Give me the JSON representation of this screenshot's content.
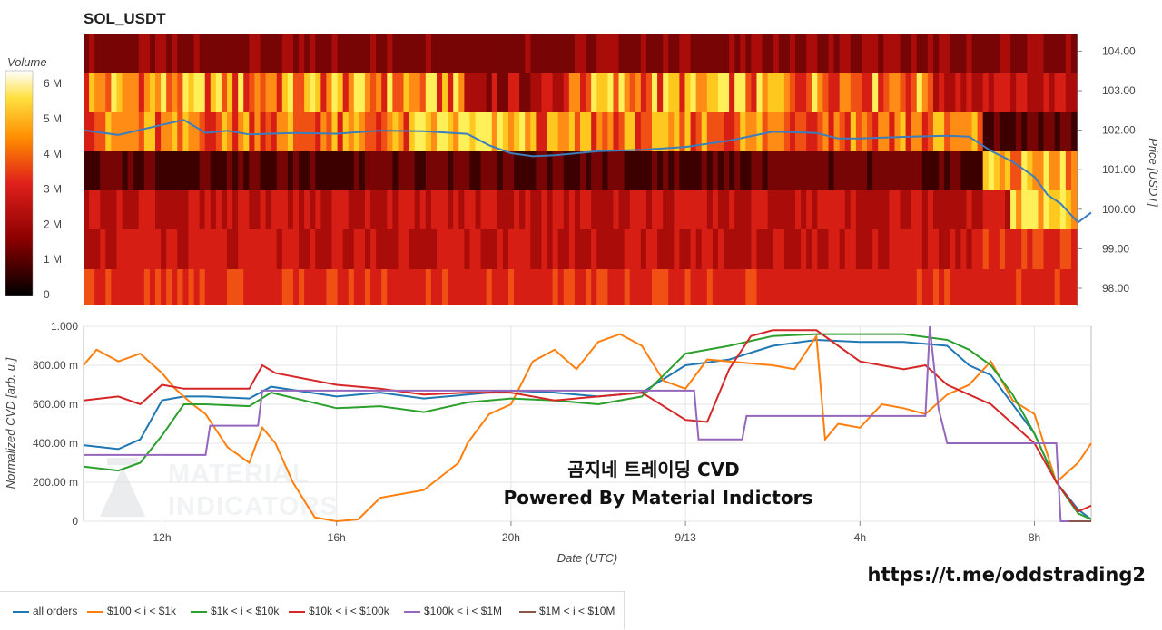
{
  "title": "SOL_USDT",
  "link_text": "https://t.me/oddstrading2",
  "overlay_line1": "곰지네 트레이딩 CVD",
  "overlay_line2": "Powered By Material Indictors",
  "watermark_line1": "MATERIAL",
  "watermark_line2": "INDICATORS",
  "colorbar": {
    "title": "Volume",
    "ticks": [
      "0",
      "1 M",
      "2 M",
      "3 M",
      "4 M",
      "5 M",
      "6 M"
    ]
  },
  "colors": {
    "all_orders": "#1f77b4",
    "b100_1k": "#ff7f0e",
    "b1k_10k": "#2ca02c",
    "b10k_100k": "#d62728",
    "b100k_1M": "#9467bd",
    "b1M_10M": "#8c564b",
    "price_line": "#3b7dbd"
  },
  "heatmap": {
    "ylabel": "Price [USDT]",
    "yticks": [
      "98.00",
      "99.00",
      "100.00",
      "101.00",
      "102.00",
      "103.00",
      "104.00"
    ]
  },
  "cvd": {
    "ylabel": "Normalized CVD [arb. u.]",
    "xlabel": "Date (UTC)",
    "yticks": [
      "0",
      "200.00 m",
      "400.00 m",
      "600.00 m",
      "800.00 m",
      "1.000"
    ],
    "xticks": [
      "12h",
      "16h",
      "20h",
      "9/13",
      "4h",
      "8h"
    ]
  },
  "legend": [
    {
      "label": "all orders",
      "color": "#1f77b4"
    },
    {
      "label": "$100 < i < $1k",
      "color": "#ff7f0e"
    },
    {
      "label": "$1k < i < $10k",
      "color": "#2ca02c"
    },
    {
      "label": "$10k < i < $100k",
      "color": "#d62728"
    },
    {
      "label": "$100k < i < $1M",
      "color": "#9467bd"
    },
    {
      "label": "$1M < i < $10M",
      "color": "#8c564b"
    }
  ],
  "chart_data": [
    {
      "type": "heatmap",
      "title": "SOL_USDT",
      "ylabel": "Price [USDT]",
      "y_levels": [
        104.0,
        103.0,
        102.0,
        101.0,
        100.0,
        99.5,
        98.5,
        98.0
      ],
      "x_hours": [
        10.2,
        33.3
      ],
      "price_series": {
        "x": [
          10.2,
          11,
          12,
          12.5,
          13,
          13.5,
          14,
          15,
          16,
          17,
          18,
          19,
          19.5,
          20,
          20.5,
          21,
          22,
          23,
          24,
          25,
          26,
          27,
          27.5,
          28,
          29,
          30,
          30.5,
          31,
          31.5,
          32,
          32.3,
          32.6,
          33,
          33.3
        ],
        "y": [
          102.0,
          101.9,
          102.1,
          102.3,
          101.9,
          102.0,
          101.9,
          101.9,
          101.95,
          101.95,
          102.0,
          101.9,
          101.6,
          101.45,
          101.3,
          101.4,
          101.45,
          101.5,
          101.6,
          101.7,
          102.0,
          101.9,
          101.8,
          101.8,
          101.8,
          101.9,
          101.8,
          101.5,
          101.2,
          100.8,
          100.4,
          100.1,
          99.7,
          99.9
        ]
      }
    },
    {
      "type": "line",
      "xlabel": "Date (UTC)",
      "ylabel": "Normalized CVD [arb. u.]",
      "ylim": [
        0,
        1
      ],
      "series": [
        {
          "name": "all orders",
          "x": [
            10.2,
            11,
            11.5,
            12,
            12.5,
            13,
            14,
            14.5,
            16,
            17,
            18,
            19,
            20,
            21,
            22,
            23,
            24,
            25,
            26,
            27,
            28,
            29,
            30,
            30.5,
            31,
            31.5,
            32,
            32.5,
            33,
            33.3
          ],
          "y": [
            0.39,
            0.37,
            0.42,
            0.62,
            0.64,
            0.64,
            0.63,
            0.69,
            0.64,
            0.66,
            0.63,
            0.65,
            0.67,
            0.66,
            0.64,
            0.66,
            0.8,
            0.83,
            0.9,
            0.93,
            0.92,
            0.92,
            0.9,
            0.8,
            0.75,
            0.6,
            0.45,
            0.2,
            0.06,
            0.01
          ]
        },
        {
          "name": "$100 < i < $1k",
          "x": [
            10.2,
            10.5,
            11,
            11.5,
            12,
            12.3,
            12.7,
            13,
            13.5,
            14,
            14.3,
            14.6,
            15,
            15.5,
            16,
            16.5,
            17,
            18,
            18.8,
            19,
            19.5,
            20,
            20.5,
            21,
            21.5,
            22,
            22.5,
            23,
            23.5,
            24,
            24.5,
            25,
            26,
            26.5,
            27,
            27.2,
            27.5,
            28,
            28.5,
            29,
            29.5,
            30,
            30.5,
            31,
            31.5,
            32,
            32.5,
            33,
            33.3
          ],
          "y": [
            0.8,
            0.88,
            0.82,
            0.86,
            0.76,
            0.68,
            0.6,
            0.55,
            0.38,
            0.3,
            0.48,
            0.4,
            0.2,
            0.02,
            0.0,
            0.01,
            0.12,
            0.16,
            0.3,
            0.4,
            0.55,
            0.6,
            0.82,
            0.88,
            0.78,
            0.92,
            0.96,
            0.9,
            0.72,
            0.68,
            0.83,
            0.82,
            0.8,
            0.78,
            0.95,
            0.42,
            0.5,
            0.48,
            0.6,
            0.58,
            0.55,
            0.65,
            0.7,
            0.82,
            0.62,
            0.55,
            0.2,
            0.3,
            0.4
          ]
        },
        {
          "name": "$1k < i < $10k",
          "x": [
            10.2,
            11,
            11.5,
            12,
            12.5,
            13,
            14,
            14.5,
            16,
            17,
            18,
            19,
            20,
            21,
            22,
            23,
            24,
            25,
            26,
            27,
            28,
            29,
            30,
            30.5,
            31,
            31.5,
            32,
            32.5,
            33,
            33.3
          ],
          "y": [
            0.28,
            0.26,
            0.3,
            0.44,
            0.6,
            0.6,
            0.59,
            0.66,
            0.58,
            0.59,
            0.56,
            0.61,
            0.63,
            0.62,
            0.6,
            0.64,
            0.86,
            0.9,
            0.95,
            0.96,
            0.96,
            0.96,
            0.93,
            0.88,
            0.8,
            0.65,
            0.45,
            0.2,
            0.04,
            0.01
          ]
        },
        {
          "name": "$10k < i < $100k",
          "x": [
            10.2,
            11,
            11.5,
            12,
            12.5,
            13,
            14,
            14.3,
            14.6,
            16,
            17,
            18,
            19,
            20,
            21,
            22,
            23,
            24,
            24.5,
            25,
            25.5,
            26,
            27,
            27.5,
            28,
            29,
            29.5,
            30,
            30.5,
            31,
            31.5,
            32,
            32.5,
            33,
            33.3
          ],
          "y": [
            0.62,
            0.64,
            0.6,
            0.7,
            0.68,
            0.68,
            0.68,
            0.8,
            0.76,
            0.7,
            0.68,
            0.65,
            0.66,
            0.66,
            0.62,
            0.64,
            0.66,
            0.52,
            0.51,
            0.78,
            0.95,
            0.98,
            0.98,
            0.9,
            0.82,
            0.78,
            0.8,
            0.7,
            0.65,
            0.6,
            0.5,
            0.4,
            0.2,
            0.05,
            0.08
          ]
        },
        {
          "name": "$100k < i < $1M",
          "x": [
            10.2,
            13,
            13.1,
            14.2,
            14.3,
            19.5,
            24.2,
            24.3,
            25.3,
            25.4,
            29.5,
            29.6,
            29.8,
            30.0,
            32.5,
            32.6,
            33.3
          ],
          "y": [
            0.34,
            0.34,
            0.49,
            0.49,
            0.67,
            0.67,
            0.67,
            0.42,
            0.42,
            0.54,
            0.54,
            1.0,
            0.58,
            0.4,
            0.4,
            0.0,
            0.0
          ]
        },
        {
          "name": "$1M < i < $10M",
          "x": [
            32.8,
            33.3
          ],
          "y": [
            0.0,
            0.0
          ]
        }
      ]
    }
  ]
}
